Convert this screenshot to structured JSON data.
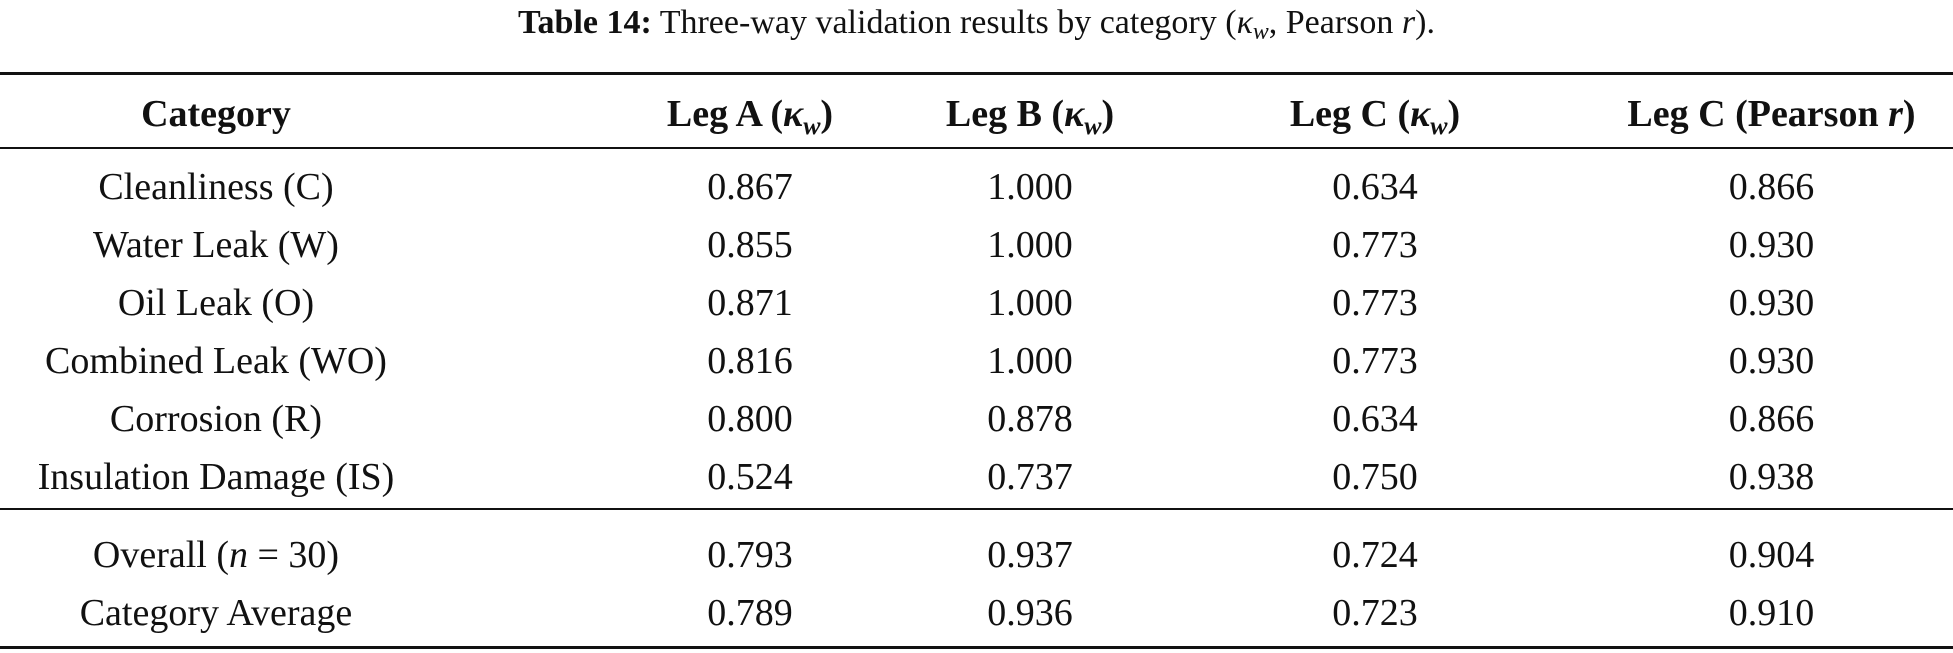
{
  "caption": {
    "label": "Table 14:",
    "text_prefix": "Three-way validation results by category (",
    "kappa": "κ",
    "kappa_sub": "w",
    "text_middle": ", Pearson ",
    "r": "r",
    "text_suffix": ")."
  },
  "columns": [
    {
      "label": "Category"
    },
    {
      "label": "Leg A (",
      "sym": "κ",
      "sub": "w",
      "close": ")"
    },
    {
      "label": "Leg B (",
      "sym": "κ",
      "sub": "w",
      "close": ")"
    },
    {
      "label": "Leg C (",
      "sym": "κ",
      "sub": "w",
      "close": ")"
    },
    {
      "label": "Leg C (Pearson ",
      "sym": "r",
      "sub": "",
      "close": ")"
    }
  ],
  "rows": [
    {
      "category": "Cleanliness (C)",
      "leg_a": "0.867",
      "leg_b": "1.000",
      "leg_c_kappa": "0.634",
      "leg_c_pearson": "0.866"
    },
    {
      "category": "Water Leak (W)",
      "leg_a": "0.855",
      "leg_b": "1.000",
      "leg_c_kappa": "0.773",
      "leg_c_pearson": "0.930"
    },
    {
      "category": "Oil Leak (O)",
      "leg_a": "0.871",
      "leg_b": "1.000",
      "leg_c_kappa": "0.773",
      "leg_c_pearson": "0.930"
    },
    {
      "category": "Combined Leak (WO)",
      "leg_a": "0.816",
      "leg_b": "1.000",
      "leg_c_kappa": "0.773",
      "leg_c_pearson": "0.930"
    },
    {
      "category": "Corrosion (R)",
      "leg_a": "0.800",
      "leg_b": "0.878",
      "leg_c_kappa": "0.634",
      "leg_c_pearson": "0.866"
    },
    {
      "category": "Insulation Damage (IS)",
      "leg_a": "0.524",
      "leg_b": "0.737",
      "leg_c_kappa": "0.750",
      "leg_c_pearson": "0.938"
    }
  ],
  "summary": [
    {
      "category_prefix": "Overall (",
      "category_math": "n",
      "category_suffix": " = 30)",
      "leg_a": "0.793",
      "leg_b": "0.937",
      "leg_c_kappa": "0.724",
      "leg_c_pearson": "0.904"
    },
    {
      "category_prefix": "Category Average",
      "category_math": "",
      "category_suffix": "",
      "leg_a": "0.789",
      "leg_b": "0.936",
      "leg_c_kappa": "0.723",
      "leg_c_pearson": "0.910"
    }
  ]
}
